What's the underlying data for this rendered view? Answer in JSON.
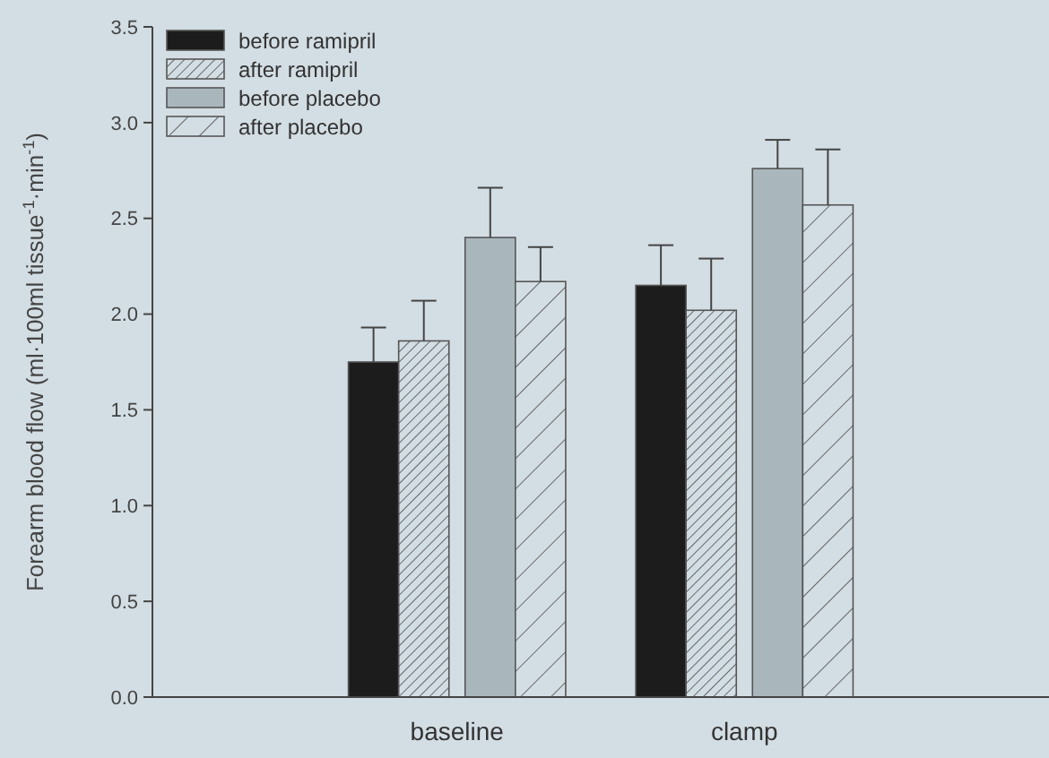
{
  "chart_data": {
    "type": "bar",
    "ylabel": "Forearm blood flow (ml·100ml tissue$^{-1}$·min$^{-1}$)",
    "categories": [
      "baseline",
      "clamp"
    ],
    "series": [
      {
        "name": "before ramipril",
        "color": "#1c1c1c",
        "values": [
          1.75,
          2.15
        ],
        "errors": [
          [
            1.75,
            1.93
          ],
          [
            2.15,
            2.36
          ]
        ]
      },
      {
        "name": "after ramipril",
        "color": "#4a4a4a",
        "values": [
          1.86,
          2.02
        ],
        "errors": [
          [
            1.86,
            2.07
          ],
          [
            2.02,
            2.29
          ]
        ]
      },
      {
        "name": "before placebo",
        "color": "#a9b7bd",
        "values": [
          2.4,
          2.76
        ],
        "errors": [
          [
            2.4,
            2.66
          ],
          [
            2.76,
            2.91
          ]
        ]
      },
      {
        "name": "after placebo",
        "color": "#4a4a4a",
        "values": [
          2.17,
          2.57
        ],
        "errors": [
          [
            2.17,
            2.35
          ],
          [
            2.57,
            2.86
          ]
        ]
      }
    ],
    "ylim": [
      0,
      3.5
    ],
    "yticks": [
      {
        "value": 0,
        "label": "0.0"
      },
      {
        "value": 0.5,
        "label": "0.5"
      },
      {
        "value": 1,
        "label": "1.0"
      },
      {
        "value": 1.5,
        "label": "1.5"
      },
      {
        "value": 2,
        "label": "2.0"
      },
      {
        "value": 2.5,
        "label": "2.5"
      },
      {
        "value": 3,
        "label": "3.0"
      },
      {
        "value": 3.5,
        "label": "3.5"
      }
    ],
    "legend": "top left",
    "grid": false
  }
}
